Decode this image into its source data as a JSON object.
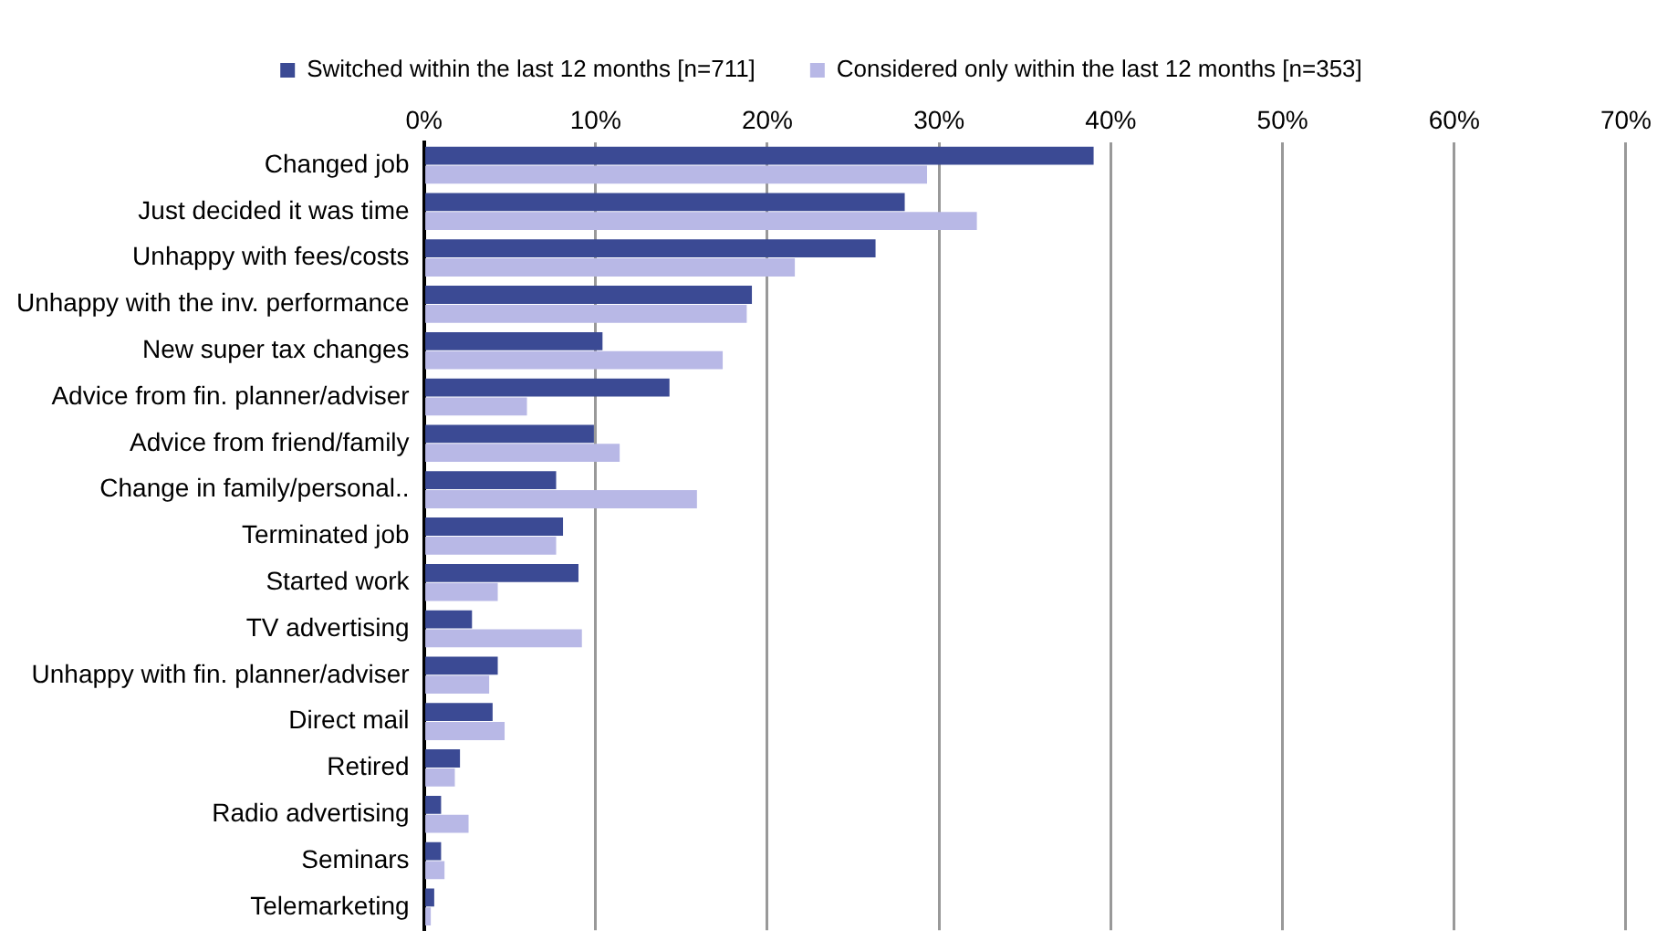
{
  "chart_data": {
    "type": "bar",
    "orientation": "horizontal",
    "categories": [
      "Changed job",
      "Just decided it was time",
      "Unhappy with fees/costs",
      "Unhappy with the inv. performance",
      "New super tax changes",
      "Advice from fin. planner/adviser",
      "Advice from friend/family",
      "Change in family/personal..",
      "Terminated job",
      "Started work",
      "TV advertising",
      "Unhappy with fin. planner/adviser",
      "Direct mail",
      "Retired",
      "Radio advertising",
      "Seminars",
      "Telemarketing"
    ],
    "series": [
      {
        "name": "Switched within the last 12 months [n=711]",
        "color": "#3b4a94",
        "values": [
          39.0,
          28.0,
          26.3,
          19.1,
          10.4,
          14.3,
          9.9,
          7.7,
          8.1,
          9.0,
          2.8,
          4.3,
          4.0,
          2.1,
          1.0,
          1.0,
          0.6
        ]
      },
      {
        "name": "Considered only within the last 12 months [n=353]",
        "color": "#b8b8e6",
        "values": [
          29.3,
          32.2,
          21.6,
          18.8,
          17.4,
          6.0,
          11.4,
          15.9,
          7.7,
          4.3,
          9.2,
          3.8,
          4.7,
          1.8,
          2.6,
          1.2,
          0.4
        ]
      }
    ],
    "xlim": [
      0,
      70
    ],
    "xticks": [
      {
        "value": 0,
        "label": "0%"
      },
      {
        "value": 10,
        "label": "10%"
      },
      {
        "value": 20,
        "label": "20%"
      },
      {
        "value": 30,
        "label": "30%"
      },
      {
        "value": 40,
        "label": "40%"
      },
      {
        "value": 50,
        "label": "50%"
      },
      {
        "value": 60,
        "label": "60%"
      },
      {
        "value": 70,
        "label": "70%"
      }
    ],
    "grid": "x",
    "legend": "top"
  }
}
